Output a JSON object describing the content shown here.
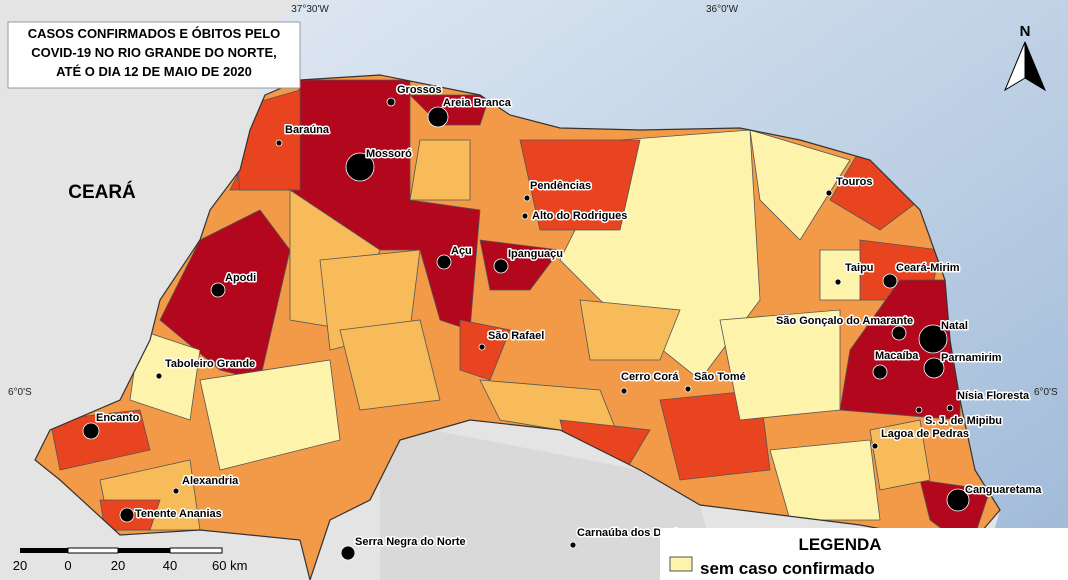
{
  "title_lines": [
    "CASOS CONFIRMADOS E ÓBITOS PELO",
    "COVID-19 NO RIO GRANDE DO NORTE,",
    "ATÉ O DIA 12 DE MAIO DE 2020"
  ],
  "coordinates": {
    "top": [
      "37°30'W",
      "36°0'W"
    ],
    "left": "6°0'S",
    "right": "6°0'S"
  },
  "north": "N",
  "state_label": "CEARÁ",
  "cities": [
    "Grossos",
    "Areia Branca",
    "Baraúna",
    "Mossoró",
    "Pendências",
    "Alto do Rodrigues",
    "Touros",
    "Açu",
    "Ipanguaçu",
    "Apodi",
    "Taipu",
    "Ceará-Mirim",
    "São Gonçalo do Amarante",
    "Natal",
    "São Rafael",
    "Macaíba",
    "Parnamirim",
    "Taboleiro Grande",
    "Cerro Corá",
    "São Tomé",
    "Nísia Floresta",
    "S. J. de Mipibu",
    "Encanto",
    "Lagoa de Pedras",
    "Alexandria",
    "Canguaretama",
    "Tenente Ananias",
    "Serra Negra do Norte",
    "Carnaúba dos Dantas"
  ],
  "scale_labels": [
    "20",
    "0",
    "20",
    "40",
    "60 km"
  ],
  "legend": {
    "title": "LEGENDA",
    "items": [
      "sem caso confirmado"
    ]
  }
}
